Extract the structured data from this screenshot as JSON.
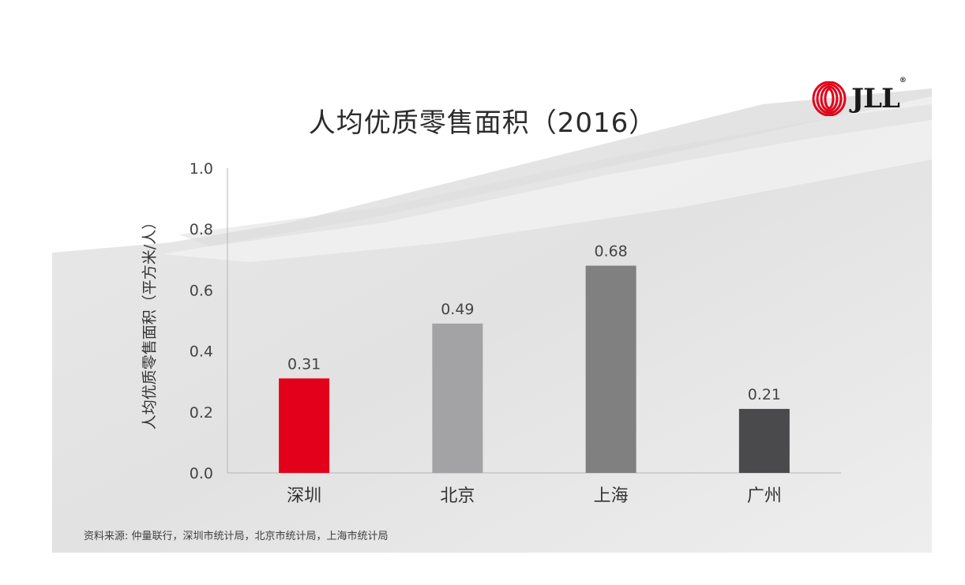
{
  "logo": {
    "text": "JLL",
    "mark": "®"
  },
  "source_note": "资料来源: 仲量联行，深圳市统计局，北京市统计局，上海市统计局",
  "chart_data": {
    "type": "bar",
    "title": "人均优质零售面积（2016）",
    "xlabel": "",
    "ylabel": "人均优质零售面积（平方米/人）",
    "categories": [
      "深圳",
      "北京",
      "上海",
      "广州"
    ],
    "values": [
      0.31,
      0.49,
      0.68,
      0.21
    ],
    "value_labels": [
      "0.31",
      "0.49",
      "0.68",
      "0.21"
    ],
    "bar_colors": [
      "#e2001a",
      "#a3a3a5",
      "#808081",
      "#4a4a4c"
    ],
    "ylim": [
      0,
      1.0
    ],
    "yticks": [
      0.0,
      0.2,
      0.4,
      0.6,
      0.8,
      1.0
    ],
    "ytick_labels": [
      "0.0",
      "0.2",
      "0.4",
      "0.6",
      "0.8",
      "1.0"
    ],
    "grid": false,
    "legend": "none"
  }
}
